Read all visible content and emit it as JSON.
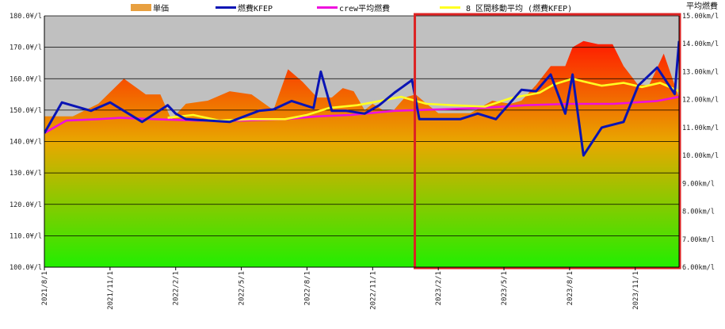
{
  "chart_data": {
    "type": "line",
    "title": "",
    "legend_position": "top",
    "legend": [
      "単価",
      "燃費KFEP",
      "crew平均燃費",
      "8 区間移動平均 (燃費KFEP)"
    ],
    "y_left": {
      "range": [
        100,
        180
      ],
      "ticks": [
        "100.0¥/l",
        "110.0¥/l",
        "120.0¥/l",
        "130.0¥/l",
        "140.0¥/l",
        "150.0¥/l",
        "160.0¥/l",
        "170.0¥/l",
        "180.0¥/l"
      ]
    },
    "y_right": {
      "label": "平均燃費",
      "range": [
        6,
        15
      ],
      "ticks": [
        "6.00km/l",
        "7.00km/l",
        "8.00km/l",
        "9.00km/l",
        "10.00km/l",
        "11.00km/l",
        "12.00km/l",
        "13.00km/l",
        "14.00km/l",
        "15.00km/l"
      ]
    },
    "x_axis": {
      "range_months": [
        "2021-08",
        "2024-01"
      ],
      "tick_labels": [
        "2021/8/1",
        "2021/11/1",
        "2022/2/1",
        "2022/5/1",
        "2022/8/1",
        "2022/11/1",
        "2023/2/1",
        "2023/5/1",
        "2023/8/1",
        "2023/11/1"
      ]
    },
    "grid": true,
    "highlight_box": {
      "from": "2023-01",
      "to": "2024-01",
      "color": "#dd2222"
    },
    "colors": {
      "plot_bg": "#c0c0c0",
      "price_top": "#ff1a00",
      "price_mid": "#e8a800",
      "price_bottom": "#22ee00",
      "fuel": "#0a14b4",
      "crew": "#ee10dd",
      "moving_avg": "#ffff22",
      "box": "#dd2222",
      "legend_price": "#e8a040"
    },
    "series": [
      {
        "name": "単価",
        "axis": "left",
        "style": "area",
        "x": [
          "2021-08-01",
          "2021-09-10",
          "2021-10-15",
          "2021-11-20",
          "2021-12-20",
          "2022-01-10",
          "2022-01-25",
          "2022-02-15",
          "2022-03-15",
          "2022-04-15",
          "2022-05-15",
          "2022-06-15",
          "2022-07-05",
          "2022-07-25",
          "2022-08-15",
          "2022-09-05",
          "2022-09-20",
          "2022-10-05",
          "2022-10-20",
          "2022-11-01",
          "2022-11-15",
          "2022-11-30",
          "2022-12-15",
          "2022-12-30",
          "2023-01-15",
          "2023-02-01",
          "2023-02-20",
          "2023-03-15",
          "2023-04-15",
          "2023-05-10",
          "2023-05-25",
          "2023-06-15",
          "2023-07-05",
          "2023-07-25",
          "2023-08-05",
          "2023-08-20",
          "2023-09-10",
          "2023-09-30",
          "2023-10-15",
          "2023-11-05",
          "2023-11-20",
          "2023-12-10",
          "2023-12-25",
          "2024-01-01"
        ],
        "y": [
          148,
          148,
          152,
          160,
          155,
          155,
          147,
          152,
          153,
          156,
          155,
          150,
          163,
          159,
          154,
          154,
          157,
          156,
          150,
          152,
          150,
          150,
          154,
          155,
          152,
          149,
          149,
          149,
          153,
          152,
          153,
          158,
          164,
          164,
          170,
          172,
          171,
          171,
          164,
          158,
          158,
          168,
          158,
          154
        ]
      },
      {
        "name": "燃費KFEP",
        "axis": "right",
        "style": "line",
        "x": [
          "2021-08-01",
          "2021-08-25",
          "2021-10-05",
          "2021-11-01",
          "2021-12-15",
          "2022-01-20",
          "2022-02-01",
          "2022-02-15",
          "2022-04-15",
          "2022-05-25",
          "2022-06-15",
          "2022-07-10",
          "2022-08-10",
          "2022-08-20",
          "2022-09-05",
          "2022-09-25",
          "2022-10-20",
          "2022-11-10",
          "2022-12-01",
          "2022-12-25",
          "2023-01-05",
          "2023-02-01",
          "2023-03-01",
          "2023-03-25",
          "2023-04-20",
          "2023-05-10",
          "2023-05-25",
          "2023-06-15",
          "2023-07-05",
          "2023-07-25",
          "2023-08-05",
          "2023-08-20",
          "2023-09-15",
          "2023-10-15",
          "2023-11-05",
          "2023-12-01",
          "2023-12-25",
          "2024-01-01"
        ],
        "y": [
          10.8,
          11.9,
          11.6,
          11.9,
          11.2,
          11.8,
          11.5,
          11.3,
          11.2,
          11.6,
          11.65,
          11.95,
          11.7,
          13.0,
          11.6,
          11.6,
          11.5,
          11.8,
          12.25,
          12.7,
          11.3,
          11.3,
          11.3,
          11.5,
          11.3,
          11.9,
          12.35,
          12.3,
          12.9,
          11.5,
          12.9,
          10.0,
          11.0,
          11.2,
          12.5,
          13.15,
          12.2,
          14.1
        ]
      },
      {
        "name": "crew平均燃費",
        "axis": "right",
        "style": "line",
        "x": [
          "2021-08-01",
          "2021-09-01",
          "2021-10-15",
          "2021-11-15",
          "2022-01-01",
          "2022-03-01",
          "2022-05-01",
          "2022-07-01",
          "2022-08-15",
          "2022-10-01",
          "2022-12-01",
          "2023-02-01",
          "2023-04-01",
          "2023-06-01",
          "2023-08-01",
          "2023-10-01",
          "2023-12-01",
          "2024-01-01"
        ],
        "y": [
          10.8,
          11.25,
          11.3,
          11.35,
          11.3,
          11.25,
          11.25,
          11.3,
          11.4,
          11.45,
          11.6,
          11.65,
          11.7,
          11.8,
          11.85,
          11.85,
          11.95,
          12.1
        ]
      },
      {
        "name": "8 区間移動平均 (燃費KFEP)",
        "axis": "right",
        "style": "line",
        "x": [
          "2022-01-20",
          "2022-02-25",
          "2022-04-01",
          "2022-05-15",
          "2022-07-01",
          "2022-08-01",
          "2022-09-01",
          "2022-10-10",
          "2022-11-01",
          "2022-12-10",
          "2023-01-15",
          "2023-02-20",
          "2023-04-05",
          "2023-05-10",
          "2023-06-20",
          "2023-07-10",
          "2023-08-05",
          "2023-08-20",
          "2023-09-15",
          "2023-10-15",
          "2023-11-10",
          "2023-12-05",
          "2024-01-01"
        ],
        "y": [
          11.35,
          11.45,
          11.25,
          11.3,
          11.3,
          11.45,
          11.7,
          11.8,
          11.9,
          12.1,
          11.85,
          11.8,
          11.75,
          12.05,
          12.25,
          12.55,
          12.75,
          12.65,
          12.5,
          12.6,
          12.45,
          12.6,
          12.3
        ]
      }
    ]
  }
}
